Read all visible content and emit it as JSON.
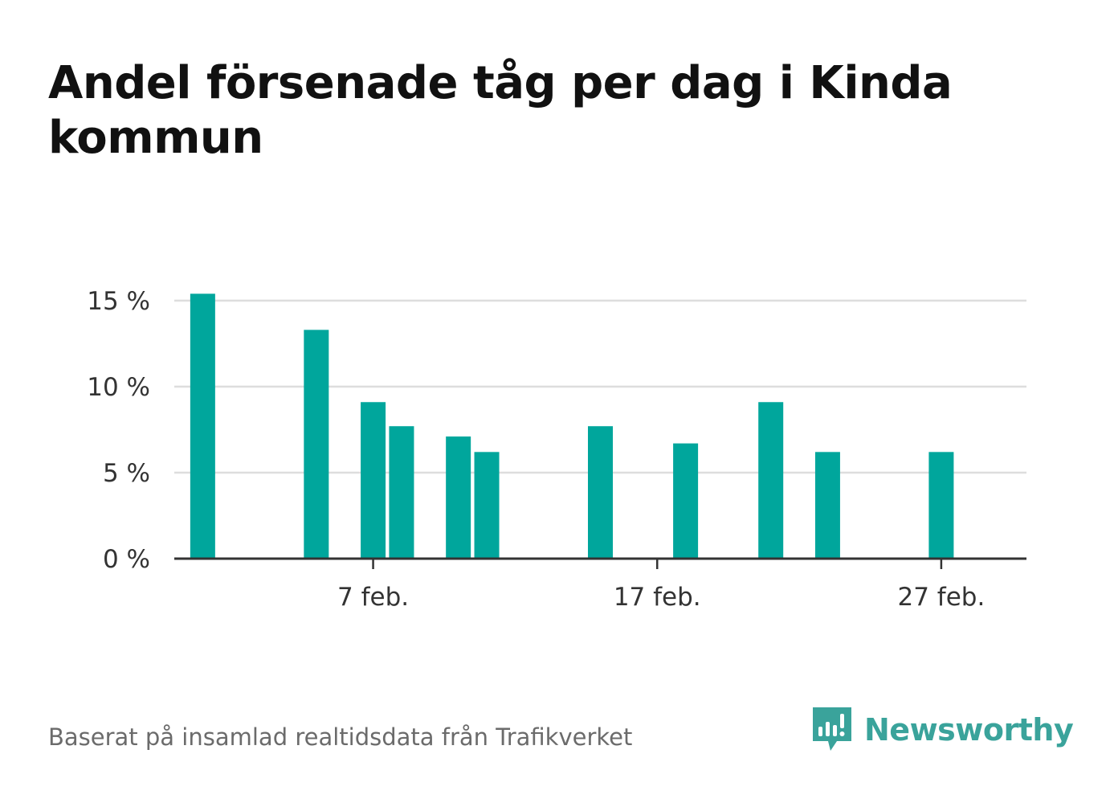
{
  "title": "Andel försenade tåg per dag i Kinda kommun",
  "footer": {
    "source": "Baserat på insamlad realtidsdata från Trafikverket",
    "brand": "Newsworthy"
  },
  "colors": {
    "bar": "#00a69c",
    "grid": "#dddddd",
    "axis": "#333333",
    "brand": "#3aa39b"
  },
  "icons": {
    "brand_logo": "bar-chart-speech-bubble-icon"
  },
  "chart_data": {
    "type": "bar",
    "title": "Andel försenade tåg per dag i Kinda kommun",
    "xlabel": "",
    "ylabel": "",
    "x_type": "date",
    "year": null,
    "x_domain": [
      "2023-01-31",
      "2023-03-02"
    ],
    "ylim": [
      0,
      15
    ],
    "y_ticks": [
      0,
      5,
      10,
      15
    ],
    "y_tick_labels": [
      "0 %",
      "5 %",
      "10 %",
      "15 %"
    ],
    "x_ticks": [
      "2023-02-07",
      "2023-02-17",
      "2023-02-27"
    ],
    "x_tick_labels": [
      "7 feb.",
      "17 feb.",
      "27 feb."
    ],
    "grid": true,
    "legend": "none",
    "series": [
      {
        "points": [
          {
            "date": "2023-02-01",
            "value": 15.4
          },
          {
            "date": "2023-02-05",
            "value": 13.3
          },
          {
            "date": "2023-02-07",
            "value": 9.1
          },
          {
            "date": "2023-02-08",
            "value": 7.7
          },
          {
            "date": "2023-02-10",
            "value": 7.1
          },
          {
            "date": "2023-02-11",
            "value": 6.2
          },
          {
            "date": "2023-02-15",
            "value": 7.7
          },
          {
            "date": "2023-02-18",
            "value": 6.7
          },
          {
            "date": "2023-02-21",
            "value": 9.1
          },
          {
            "date": "2023-02-23",
            "value": 6.2
          },
          {
            "date": "2023-02-27",
            "value": 6.2
          }
        ]
      }
    ]
  }
}
